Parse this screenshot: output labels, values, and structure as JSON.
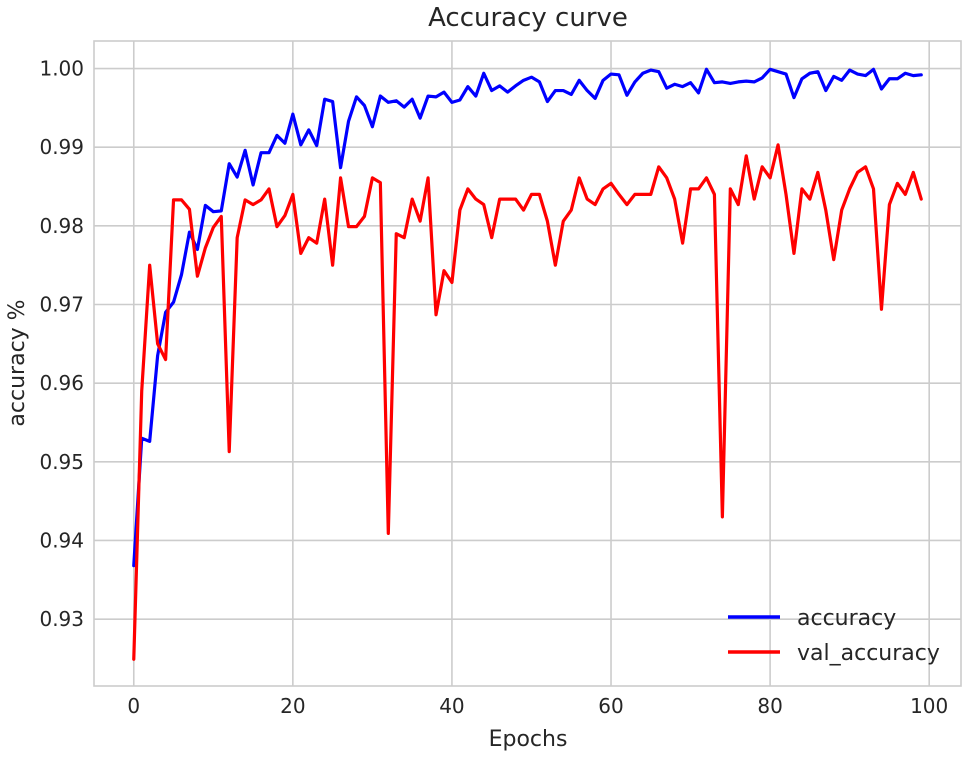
{
  "chart_data": {
    "type": "line",
    "title": "Accuracy curve",
    "xlabel": "Epochs",
    "ylabel": "accuracy %",
    "xlim": [
      -5,
      104
    ],
    "ylim": [
      0.9215,
      1.0035
    ],
    "xticks": [
      0,
      20,
      40,
      60,
      80,
      100
    ],
    "yticks": [
      0.93,
      0.94,
      0.95,
      0.96,
      0.97,
      0.98,
      0.99,
      1.0
    ],
    "xtick_labels": [
      "0",
      "20",
      "40",
      "60",
      "80",
      "100"
    ],
    "ytick_labels": [
      "0.93",
      "0.94",
      "0.95",
      "0.96",
      "0.97",
      "0.98",
      "0.99",
      "1.00"
    ],
    "grid": true,
    "legend_position": "bottom-right",
    "x": [
      0,
      1,
      2,
      3,
      4,
      5,
      6,
      7,
      8,
      9,
      10,
      11,
      12,
      13,
      14,
      15,
      16,
      17,
      18,
      19,
      20,
      21,
      22,
      23,
      24,
      25,
      26,
      27,
      28,
      29,
      30,
      31,
      32,
      33,
      34,
      35,
      36,
      37,
      38,
      39,
      40,
      41,
      42,
      43,
      44,
      45,
      46,
      47,
      48,
      49,
      50,
      51,
      52,
      53,
      54,
      55,
      56,
      57,
      58,
      59,
      60,
      61,
      62,
      63,
      64,
      65,
      66,
      67,
      68,
      69,
      70,
      71,
      72,
      73,
      74,
      75,
      76,
      77,
      78,
      79,
      80,
      81,
      82,
      83,
      84,
      85,
      86,
      87,
      88,
      89,
      90,
      91,
      92,
      93,
      94,
      95,
      96,
      97,
      98,
      99
    ],
    "series": [
      {
        "name": "accuracy",
        "color": "#0000ff",
        "values": [
          0.9368,
          0.953,
          0.9526,
          0.9635,
          0.969,
          0.9703,
          0.9738,
          0.9792,
          0.977,
          0.9826,
          0.9818,
          0.9819,
          0.9879,
          0.9862,
          0.9896,
          0.9852,
          0.9893,
          0.9893,
          0.9915,
          0.9905,
          0.9942,
          0.9903,
          0.9922,
          0.9902,
          0.9961,
          0.9958,
          0.9874,
          0.9933,
          0.9964,
          0.9953,
          0.9926,
          0.9965,
          0.9957,
          0.9959,
          0.9951,
          0.9961,
          0.9937,
          0.9965,
          0.9964,
          0.997,
          0.9957,
          0.996,
          0.9977,
          0.9965,
          0.9994,
          0.9972,
          0.9978,
          0.997,
          0.9978,
          0.9985,
          0.9989,
          0.9983,
          0.9958,
          0.9972,
          0.9972,
          0.9967,
          0.9985,
          0.9972,
          0.9962,
          0.9985,
          0.9993,
          0.9992,
          0.9966,
          0.9983,
          0.9994,
          0.9998,
          0.9996,
          0.9975,
          0.998,
          0.9977,
          0.9982,
          0.9969,
          0.9999,
          0.9982,
          0.9983,
          0.9981,
          0.9983,
          0.9984,
          0.9983,
          0.9988,
          0.9999,
          0.9996,
          0.9993,
          0.9963,
          0.9987,
          0.9994,
          0.9996,
          0.9972,
          0.999,
          0.9985,
          0.9998,
          0.9993,
          0.9991,
          0.9999,
          0.9974,
          0.9987,
          0.9987,
          0.9994,
          0.9991,
          0.9992
        ]
      },
      {
        "name": "val_accuracy",
        "color": "#ff0000",
        "values": [
          0.9249,
          0.959,
          0.975,
          0.965,
          0.963,
          0.9833,
          0.9833,
          0.9821,
          0.9736,
          0.9772,
          0.9798,
          0.9812,
          0.9513,
          0.9785,
          0.9833,
          0.9827,
          0.9833,
          0.9847,
          0.9799,
          0.9813,
          0.984,
          0.9765,
          0.9785,
          0.9778,
          0.9834,
          0.975,
          0.9861,
          0.9799,
          0.9799,
          0.9812,
          0.9861,
          0.9855,
          0.9409,
          0.979,
          0.9785,
          0.9834,
          0.9806,
          0.9861,
          0.9687,
          0.9743,
          0.9728,
          0.982,
          0.9847,
          0.9834,
          0.9827,
          0.9785,
          0.9834,
          0.9834,
          0.9834,
          0.982,
          0.984,
          0.984,
          0.9806,
          0.975,
          0.9806,
          0.982,
          0.9861,
          0.9834,
          0.9827,
          0.9847,
          0.9854,
          0.984,
          0.9827,
          0.984,
          0.984,
          0.984,
          0.9875,
          0.9861,
          0.9834,
          0.9778,
          0.9847,
          0.9847,
          0.9861,
          0.984,
          0.943,
          0.9847,
          0.9827,
          0.9889,
          0.9834,
          0.9875,
          0.9861,
          0.9903,
          0.984,
          0.9765,
          0.9847,
          0.9834,
          0.9868,
          0.982,
          0.9757,
          0.982,
          0.9847,
          0.9868,
          0.9875,
          0.9847,
          0.9694,
          0.9827,
          0.9854,
          0.984,
          0.9868,
          0.9834
        ]
      }
    ]
  }
}
